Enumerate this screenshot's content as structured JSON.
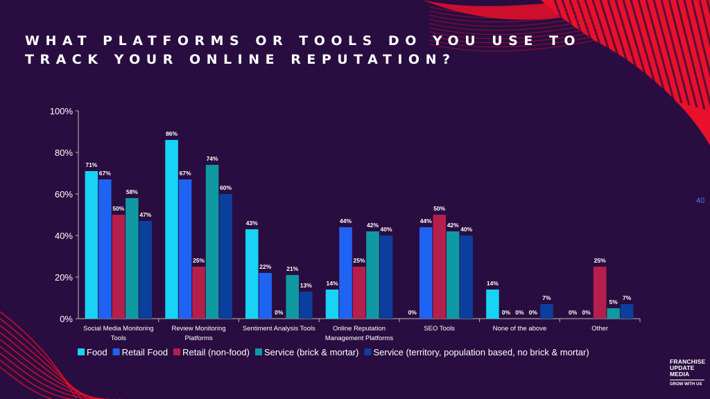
{
  "slide": {
    "title_line1": "WHAT PLATFORMS OR TOOLS DO YOU USE TO",
    "title_line2": "TRACK YOUR ONLINE REPUTATION?",
    "page_number": "40",
    "logo": {
      "line1": "FRANCHISE",
      "line2": "UPDATE",
      "line3": "MEDIA",
      "tagline": "GROW WITH US"
    },
    "colors": {
      "background": "#2a0d40",
      "accent_red": "#e8102a",
      "page_number": "#3b82f6"
    }
  },
  "chart_data": {
    "type": "bar",
    "title": "",
    "xlabel": "",
    "ylabel": "",
    "ylim": [
      0,
      100
    ],
    "yticks": [
      "0%",
      "20%",
      "40%",
      "60%",
      "80%",
      "100%"
    ],
    "grid": false,
    "legend_position": "bottom",
    "categories": [
      [
        "Social Media Monitoring",
        "Tools"
      ],
      [
        "Review Monitoring",
        "Platforms"
      ],
      [
        "Sentiment Analysis Tools"
      ],
      [
        "Online Reputation",
        "Management Platforms"
      ],
      [
        "SEO Tools"
      ],
      [
        "None of the above"
      ],
      [
        "Other"
      ]
    ],
    "series": [
      {
        "name": "Food",
        "color": "#19d3f5",
        "values": [
          71,
          86,
          43,
          14,
          0,
          14,
          0
        ]
      },
      {
        "name": "Retail Food",
        "color": "#1f63f2",
        "values": [
          67,
          67,
          22,
          44,
          44,
          0,
          0
        ]
      },
      {
        "name": "Retail (non-food)",
        "color": "#b51f4c",
        "values": [
          50,
          25,
          0,
          25,
          50,
          0,
          25
        ]
      },
      {
        "name": "Service (brick & mortar)",
        "color": "#0f9aa3",
        "values": [
          58,
          74,
          21,
          42,
          42,
          0,
          5
        ]
      },
      {
        "name": "Service (territory, population based, no brick & mortar)",
        "color": "#0b3f9e",
        "values": [
          47,
          60,
          13,
          40,
          40,
          7,
          7
        ]
      }
    ]
  }
}
